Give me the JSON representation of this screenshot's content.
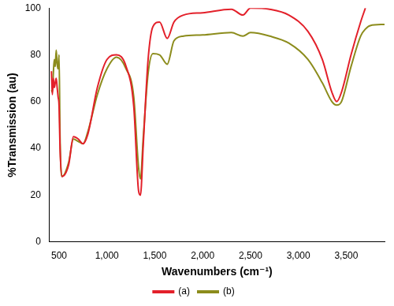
{
  "chart_data": {
    "type": "line",
    "x_label": "Wavenumbers (cm⁻¹)",
    "y_label": "%Transmission (au)",
    "x": [
      420,
      430,
      440,
      450,
      460,
      470,
      480,
      490,
      500,
      510,
      530,
      600,
      650,
      700,
      750,
      800,
      900,
      1000,
      1100,
      1200,
      1280,
      1330,
      1350,
      1380,
      1430,
      1480,
      1550,
      1630,
      1700,
      1800,
      2000,
      2300,
      2420,
      2500,
      2700,
      2900,
      3100,
      3250,
      3350,
      3400,
      3450,
      3550,
      3650,
      3700,
      3750,
      3900
    ],
    "series": [
      {
        "name": "(a)",
        "color": "#e3202a",
        "values": [
          73,
          63,
          70,
          66,
          68,
          70,
          66,
          62,
          58,
          40,
          28,
          33,
          45,
          44,
          42,
          46,
          66,
          78,
          80,
          75,
          58,
          22,
          20,
          42,
          78,
          92,
          94,
          87,
          94,
          97,
          98,
          99.5,
          97,
          100,
          99.5,
          97,
          90,
          78,
          64,
          60,
          64,
          80,
          94,
          100,
          null,
          null
        ]
      },
      {
        "name": "(b)",
        "color": "#8c8c1c",
        "values": [
          65,
          64,
          72,
          78,
          75,
          82,
          76,
          74,
          80,
          45,
          28,
          34,
          44,
          43,
          42,
          47,
          63,
          74,
          79,
          74,
          62,
          32,
          27,
          45,
          72,
          80.5,
          80,
          76,
          86,
          88,
          88.5,
          89.5,
          88,
          89.5,
          88,
          85,
          78,
          68,
          60,
          58.5,
          60,
          75,
          88,
          91,
          92.5,
          93
        ]
      }
    ],
    "xlim": [
      400,
      3900
    ],
    "xticks": [
      500,
      {
        "value": 1000,
        "label": "1,000"
      },
      {
        "value": 1500,
        "label": "1,500"
      },
      {
        "value": 2000,
        "label": "2,000"
      },
      {
        "value": 2500,
        "label": "2,500"
      },
      {
        "value": 3000,
        "label": "3,000"
      },
      {
        "value": 3500,
        "label": "3,500"
      }
    ],
    "ylim": [
      0,
      100
    ],
    "yticks": [
      0,
      20,
      40,
      60,
      80,
      100
    ],
    "grid": false,
    "legend": "bottom"
  }
}
